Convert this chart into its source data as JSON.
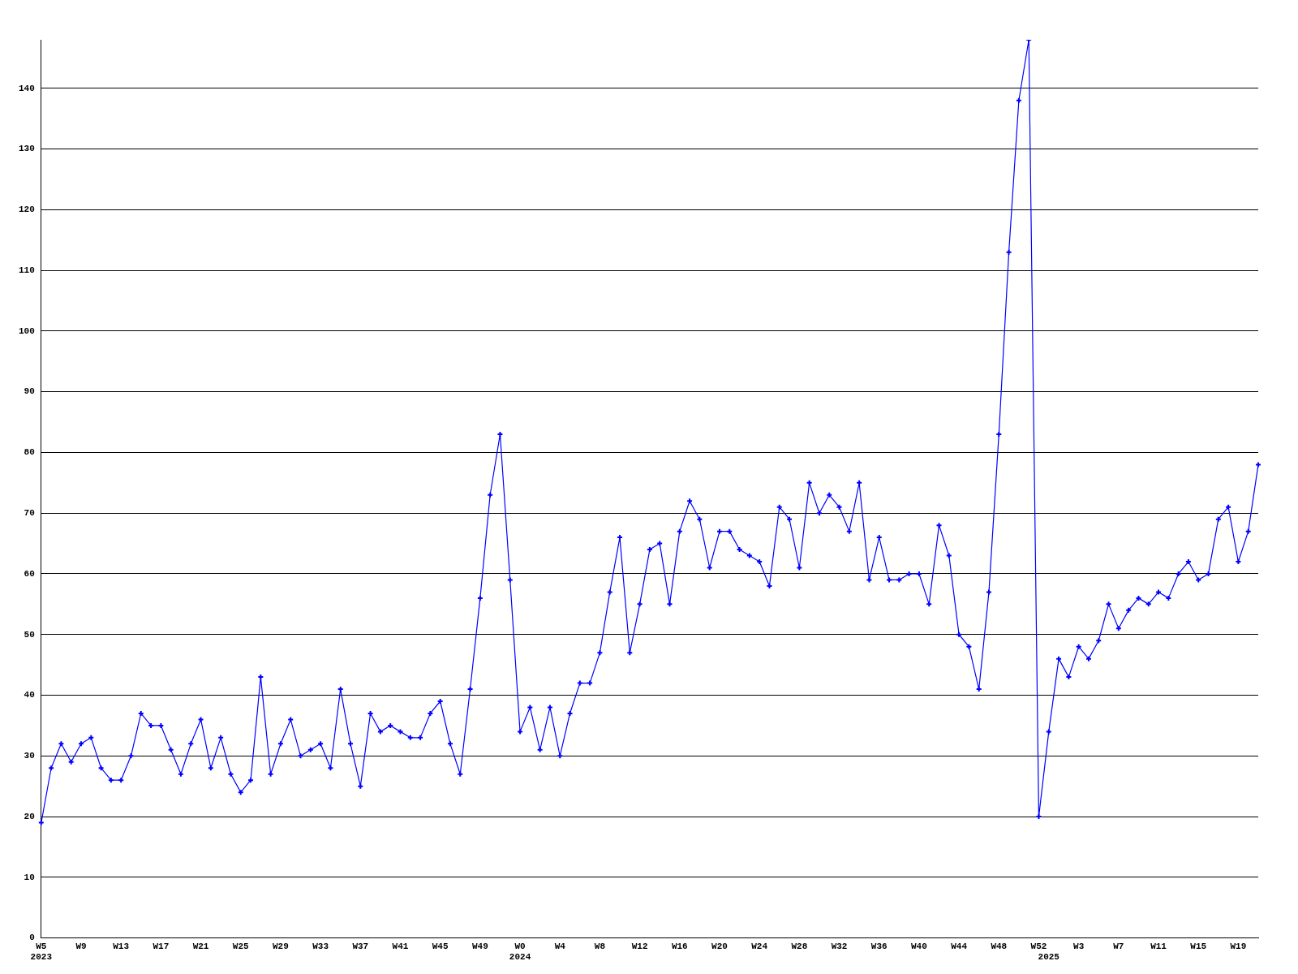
{
  "chart_data": {
    "type": "line",
    "categories": [
      "W5\n2023",
      null,
      null,
      null,
      "W9",
      null,
      null,
      null,
      "W13",
      null,
      null,
      null,
      "W17",
      null,
      null,
      null,
      "W21",
      null,
      null,
      null,
      "W25",
      null,
      null,
      null,
      "W29",
      null,
      null,
      null,
      "W33",
      null,
      null,
      null,
      "W37",
      null,
      null,
      null,
      "W41",
      null,
      null,
      null,
      "W45",
      null,
      null,
      null,
      "W49",
      null,
      null,
      null,
      "W0\n2024",
      null,
      null,
      null,
      "W4",
      null,
      null,
      null,
      "W8",
      null,
      null,
      null,
      "W12",
      null,
      null,
      null,
      "W16",
      null,
      null,
      null,
      "W20",
      null,
      null,
      null,
      "W24",
      null,
      null,
      null,
      "W28",
      null,
      null,
      null,
      "W32",
      null,
      null,
      null,
      "W36",
      null,
      null,
      null,
      "W40",
      null,
      null,
      null,
      "W44",
      null,
      null,
      null,
      "W48",
      null,
      null,
      null,
      "W52",
      "\n2025",
      null,
      null,
      "W3",
      null,
      null,
      null,
      "W7",
      null,
      null,
      null,
      "W11",
      null,
      null,
      null,
      "W15",
      null,
      null,
      null,
      "W19",
      null,
      null
    ],
    "series": [
      {
        "color": "#0000ff",
        "values": [
          19,
          28,
          32,
          29,
          32,
          33,
          28,
          26,
          26,
          30,
          37,
          35,
          35,
          31,
          27,
          32,
          36,
          28,
          33,
          27,
          24,
          26,
          43,
          27,
          32,
          36,
          30,
          31,
          32,
          28,
          41,
          32,
          25,
          37,
          34,
          35,
          34,
          33,
          33,
          37,
          39,
          32,
          27,
          41,
          56,
          73,
          83,
          59,
          34,
          38,
          31,
          38,
          30,
          37,
          42,
          42,
          47,
          57,
          66,
          47,
          55,
          64,
          65,
          55,
          67,
          72,
          69,
          61,
          67,
          67,
          64,
          63,
          62,
          58,
          71,
          69,
          61,
          75,
          70,
          73,
          71,
          67,
          75,
          59,
          66,
          59,
          59,
          60,
          60,
          55,
          68,
          63,
          50,
          48,
          41,
          57,
          83,
          113,
          138,
          148,
          20,
          34,
          46,
          43,
          48,
          46,
          49,
          55,
          51,
          54,
          56,
          55,
          57,
          56,
          60,
          62,
          59,
          60,
          69,
          71,
          62,
          67,
          78
        ]
      }
    ],
    "ylim": [
      0,
      148
    ],
    "yticks": [
      0,
      10,
      20,
      30,
      40,
      50,
      60,
      70,
      80,
      90,
      100,
      110,
      120,
      130,
      140
    ],
    "grid": "y",
    "legend": false,
    "marker": "cross",
    "line_style": "solid"
  }
}
